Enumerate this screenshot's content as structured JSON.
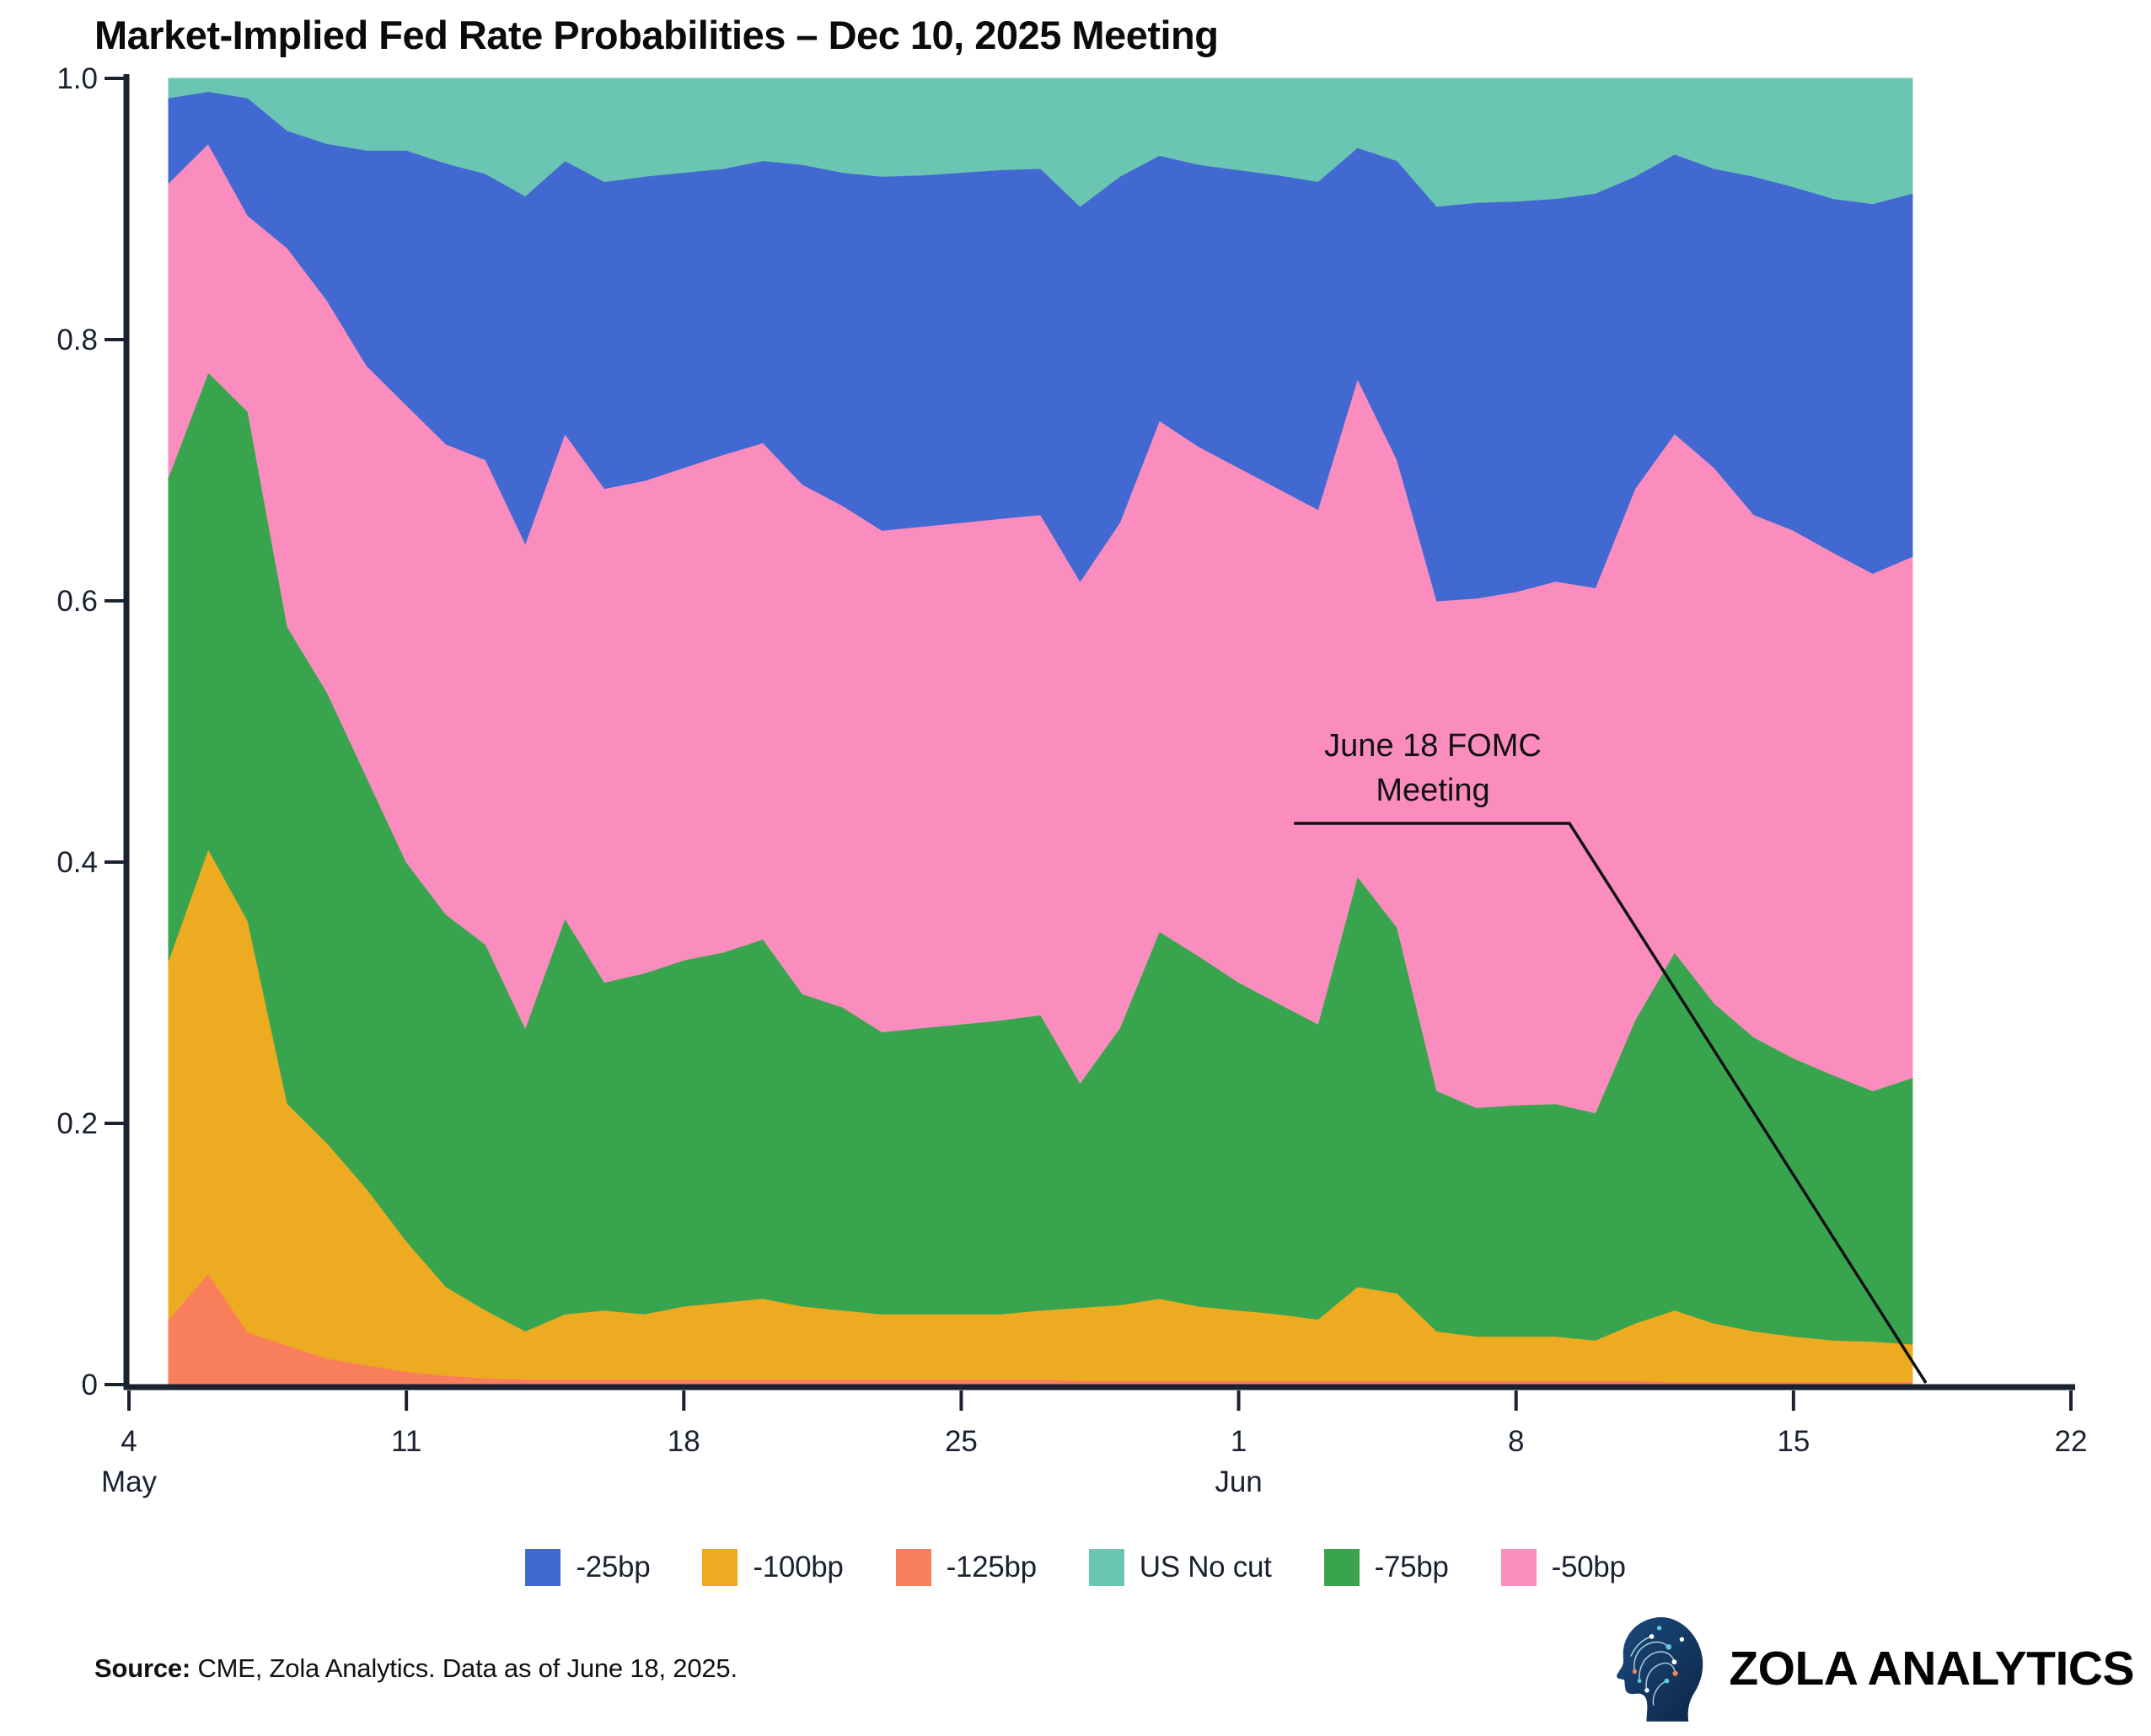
{
  "title": "Market-Implied Fed Rate Probabilities – Dec 10, 2025 Meeting",
  "annotation": {
    "line1": "June 18 FOMC",
    "line2": "Meeting"
  },
  "source": {
    "label": "Source:",
    "text": " CME, Zola Analytics. Data as of June 18, 2025."
  },
  "brand": {
    "name": "ZOLA ANALYTICS"
  },
  "legend": [
    {
      "label": "-25bp",
      "color": "#4169D1"
    },
    {
      "label": "-100bp",
      "color": "#ECAB20"
    },
    {
      "label": "-125bp",
      "color": "#F97E5C"
    },
    {
      "label": "US No cut",
      "color": "#6AC6B2"
    },
    {
      "label": "-75bp",
      "color": "#38A54E"
    },
    {
      "label": "-50bp",
      "color": "#FB8DBE"
    }
  ],
  "chart_data": {
    "type": "area",
    "stacked": true,
    "title": "Market-Implied Fed Rate Probabilities – Dec 10, 2025 Meeting",
    "xlabel": "",
    "ylabel": "",
    "ylim": [
      0,
      1.0
    ],
    "grid": false,
    "legend_position": "bottom",
    "x": [
      "May 5",
      "May 6",
      "May 7",
      "May 8",
      "May 9",
      "May 10",
      "May 11",
      "May 12",
      "May 13",
      "May 14",
      "May 15",
      "May 16",
      "May 17",
      "May 18",
      "May 19",
      "May 20",
      "May 21",
      "May 22",
      "May 23",
      "May 24",
      "May 25",
      "May 26",
      "May 27",
      "May 28",
      "May 29",
      "May 30",
      "May 31",
      "Jun 1",
      "Jun 2",
      "Jun 3",
      "Jun 4",
      "Jun 5",
      "Jun 6",
      "Jun 7",
      "Jun 8",
      "Jun 9",
      "Jun 10",
      "Jun 11",
      "Jun 12",
      "Jun 13",
      "Jun 14",
      "Jun 15",
      "Jun 16",
      "Jun 17",
      "Jun 18"
    ],
    "x_axis": {
      "ticks": [
        {
          "label": "4",
          "sub": "May",
          "day_offset": 0
        },
        {
          "label": "11",
          "sub": "",
          "day_offset": 7
        },
        {
          "label": "18",
          "sub": "",
          "day_offset": 14
        },
        {
          "label": "25",
          "sub": "",
          "day_offset": 21
        },
        {
          "label": "1",
          "sub": "Jun",
          "day_offset": 28
        },
        {
          "label": "8",
          "sub": "",
          "day_offset": 35
        },
        {
          "label": "15",
          "sub": "",
          "day_offset": 42
        },
        {
          "label": "22",
          "sub": "",
          "day_offset": 49
        }
      ]
    },
    "y_axis": {
      "ticks": [
        {
          "label": "0",
          "value": 0
        },
        {
          "label": "0.2",
          "value": 0.2
        },
        {
          "label": "0.4",
          "value": 0.4
        },
        {
          "label": "0.6",
          "value": 0.6
        },
        {
          "label": "0.8",
          "value": 0.8
        },
        {
          "label": "1.0",
          "value": 1.0
        }
      ]
    },
    "series": [
      {
        "name": "-125bp",
        "color": "#F97E5C",
        "values": [
          0.05,
          0.085,
          0.04,
          0.03,
          0.02,
          0.015,
          0.01,
          0.007,
          0.005,
          0.004,
          0.004,
          0.004,
          0.004,
          0.004,
          0.004,
          0.004,
          0.004,
          0.004,
          0.004,
          0.004,
          0.004,
          0.004,
          0.004,
          0.003,
          0.003,
          0.003,
          0.003,
          0.003,
          0.003,
          0.003,
          0.003,
          0.003,
          0.003,
          0.003,
          0.003,
          0.003,
          0.003,
          0.003,
          0.002,
          0.002,
          0.002,
          0.002,
          0.002,
          0.002,
          0.002
        ]
      },
      {
        "name": "-100bp",
        "color": "#ECAB20",
        "values": [
          0.275,
          0.325,
          0.315,
          0.185,
          0.165,
          0.135,
          0.1,
          0.068,
          0.052,
          0.037,
          0.05,
          0.053,
          0.05,
          0.056,
          0.059,
          0.062,
          0.056,
          0.053,
          0.05,
          0.05,
          0.05,
          0.05,
          0.053,
          0.056,
          0.058,
          0.063,
          0.057,
          0.054,
          0.051,
          0.047,
          0.072,
          0.067,
          0.038,
          0.034,
          0.034,
          0.034,
          0.031,
          0.044,
          0.055,
          0.045,
          0.039,
          0.035,
          0.032,
          0.031,
          0.029
        ]
      },
      {
        "name": "-75bp",
        "color": "#38A54E",
        "values": [
          0.37,
          0.365,
          0.39,
          0.365,
          0.345,
          0.315,
          0.29,
          0.285,
          0.28,
          0.232,
          0.303,
          0.251,
          0.261,
          0.265,
          0.268,
          0.275,
          0.239,
          0.232,
          0.216,
          0.219,
          0.222,
          0.225,
          0.226,
          0.172,
          0.212,
          0.281,
          0.268,
          0.251,
          0.238,
          0.226,
          0.314,
          0.28,
          0.184,
          0.175,
          0.177,
          0.178,
          0.174,
          0.232,
          0.274,
          0.245,
          0.225,
          0.213,
          0.203,
          0.192,
          0.204
        ]
      },
      {
        "name": "-50bp",
        "color": "#FB8DBE",
        "values": [
          0.225,
          0.175,
          0.15,
          0.29,
          0.3,
          0.315,
          0.35,
          0.36,
          0.371,
          0.371,
          0.371,
          0.378,
          0.377,
          0.377,
          0.381,
          0.38,
          0.39,
          0.384,
          0.384,
          0.384,
          0.384,
          0.384,
          0.383,
          0.384,
          0.387,
          0.391,
          0.39,
          0.394,
          0.394,
          0.394,
          0.381,
          0.358,
          0.375,
          0.39,
          0.393,
          0.4,
          0.402,
          0.407,
          0.397,
          0.41,
          0.4,
          0.404,
          0.4,
          0.396,
          0.399
        ]
      },
      {
        "name": "-25bp",
        "color": "#4169D1",
        "values": [
          0.065,
          0.04,
          0.09,
          0.09,
          0.12,
          0.165,
          0.195,
          0.215,
          0.219,
          0.266,
          0.209,
          0.235,
          0.233,
          0.226,
          0.219,
          0.216,
          0.245,
          0.255,
          0.271,
          0.269,
          0.268,
          0.267,
          0.265,
          0.287,
          0.265,
          0.203,
          0.216,
          0.228,
          0.24,
          0.251,
          0.177,
          0.229,
          0.302,
          0.303,
          0.299,
          0.293,
          0.302,
          0.239,
          0.214,
          0.229,
          0.259,
          0.263,
          0.271,
          0.283,
          0.278
        ]
      },
      {
        "name": "US No cut",
        "color": "#6AC6B2",
        "values": [
          0.015,
          0.01,
          0.015,
          0.04,
          0.05,
          0.055,
          0.055,
          0.065,
          0.073,
          0.09,
          0.063,
          0.079,
          0.075,
          0.072,
          0.069,
          0.063,
          0.066,
          0.072,
          0.075,
          0.074,
          0.072,
          0.07,
          0.069,
          0.098,
          0.075,
          0.059,
          0.066,
          0.07,
          0.074,
          0.079,
          0.053,
          0.063,
          0.098,
          0.095,
          0.094,
          0.092,
          0.088,
          0.075,
          0.058,
          0.069,
          0.075,
          0.083,
          0.092,
          0.096,
          0.088
        ]
      }
    ],
    "annotation": {
      "text": "June 18 FOMC Meeting",
      "points_to": "Jun 18"
    }
  }
}
